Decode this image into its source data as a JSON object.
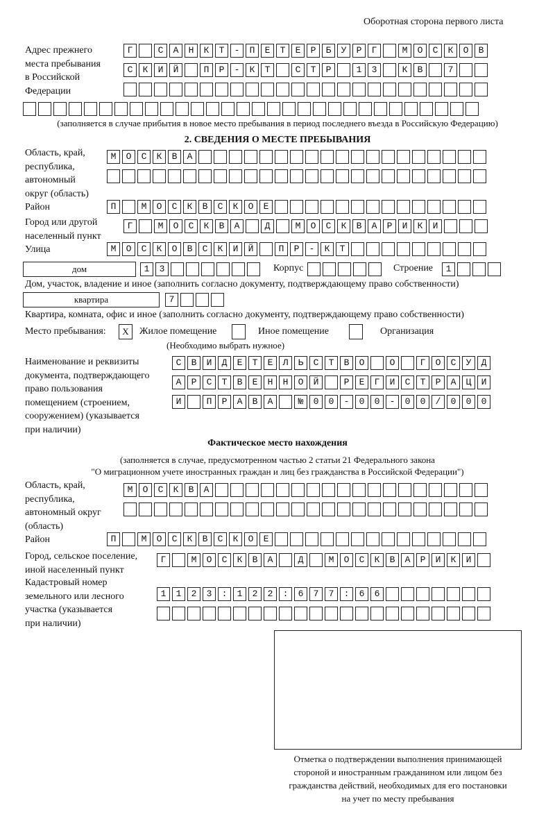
{
  "header": {
    "page_note": "Оборотная сторона первого листа"
  },
  "prev_address": {
    "label": [
      "Адрес прежнего",
      "места пребывания",
      "в Российской",
      "Федерации"
    ],
    "rows": [
      "Г САНКТ-ПЕТЕРБУРГ МОСКОВ",
      "СКИЙ ПР-КТ СТР 13 КВ 7  ",
      "                        ",
      "                              "
    ],
    "note": "(заполняется в случае прибытия в новое место пребывания в период последнего въезда в Российскую Федерацию)"
  },
  "section2": {
    "title": "2. СВЕДЕНИЯ О МЕСТЕ ПРЕБЫВАНИЯ",
    "region_label": [
      "Область, край,",
      "республика,",
      "автономный",
      "округ (область)"
    ],
    "region_rows": [
      "МОСКВА                   ",
      "                         "
    ],
    "district_label": "Район",
    "district_row": "П МОСКВСКОЕ              ",
    "city_label": [
      "Город или другой",
      "населенный пункт"
    ],
    "city_row": "Г МОСКВА Д МОСКВАРИКИ   ",
    "street_label": "Улица",
    "street_row": "МОСКОВСКИЙ ПР-КТ         ",
    "house_type": "дом",
    "house_row": "13      ",
    "korpus_label": "Корпус",
    "korpus_row": "     ",
    "building_label": "Строение",
    "building_row": "1   ",
    "house_note": "Дом, участок, владение и иное (заполнить согласно документу, подтверждающему право собственности)",
    "flat_type": "квартира",
    "flat_row": "7   ",
    "flat_note": "Квартира, комната, офис и иное (заполнить согласно документу, подтверждающему право собственности)",
    "place_label": "Место пребывания:",
    "place_options": [
      {
        "label": "Жилое помещение",
        "mark": "Х",
        "checked": true
      },
      {
        "label": "Иное помещение",
        "mark": "",
        "checked": false
      },
      {
        "label": "Организация",
        "mark": "",
        "checked": false
      }
    ],
    "place_note": "(Необходимо выбрать нужное)",
    "doc_label": [
      "Наименование и реквизиты",
      "документа, подтверждающего",
      "право пользования",
      "помещением (строением,",
      "сооружением) (указывается",
      "при наличии)"
    ],
    "doc_rows": [
      "СВИДЕТЕЛЬСТВО О ГОСУД",
      "АРСТВЕННОЙ РЕГИСТРАЦИ",
      "И ПРАВА №00-00-00/000"
    ]
  },
  "actual": {
    "title": "Фактическое место нахождения",
    "note1": "(заполняется в случае, предусмотренном частью 2 статьи 21 Федерального закона",
    "note2": "\"О миграционном учете иностранных граждан и лиц без гражданства в Российской Федерации\")",
    "region_label": [
      "Область, край,",
      "республика,",
      "автономный округ",
      "(область)"
    ],
    "region_rows": [
      "МОСКВА                  ",
      "                        "
    ],
    "district_label": "Район",
    "district_row": "П МОСКВСКОЕ              ",
    "city_label": [
      "Город, сельское поселение,",
      "иной населенный пункт"
    ],
    "city_row": "Г МОСКВА Д МОСКВАРИКИ ",
    "cadastre_label": [
      "Кадастровый номер",
      "земельного или лесного",
      "участка (указывается",
      "при наличии)"
    ],
    "cadastre_rows": [
      "1123:122:677:66       ",
      "                      "
    ]
  },
  "confirmation": {
    "caption": [
      "Отметка о подтверждении выполнения принимающей",
      "стороной и иностранным гражданином или лицом без",
      "гражданства действий, необходимых для его постановки",
      "на учет по месту пребывания"
    ]
  }
}
